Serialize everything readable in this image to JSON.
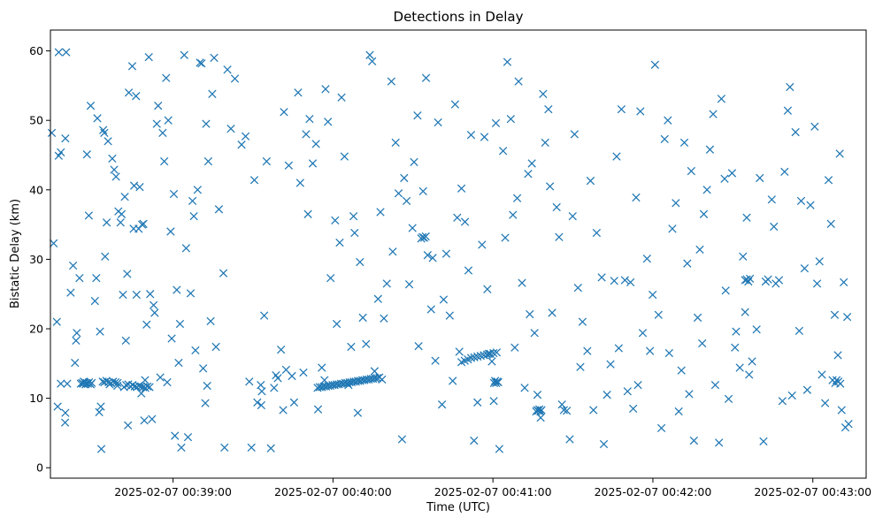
{
  "chart_data": {
    "type": "scatter",
    "title": "Detections in Delay",
    "xlabel": "Time (UTC)",
    "ylabel": "Bistatic Delay (km)",
    "marker": "x",
    "marker_color": "#1f77b4",
    "x_unit": "seconds after 2025-02-07 00:38:00",
    "x_ticks": [
      {
        "value": 60,
        "label": "2025-02-07 00:39:00"
      },
      {
        "value": 120,
        "label": "2025-02-07 00:40:00"
      },
      {
        "value": 180,
        "label": "2025-02-07 00:41:00"
      },
      {
        "value": 240,
        "label": "2025-02-07 00:42:00"
      },
      {
        "value": 300,
        "label": "2025-02-07 00:43:00"
      }
    ],
    "y_ticks": [
      0,
      10,
      20,
      30,
      40,
      50,
      60
    ],
    "xlim": [
      14,
      320
    ],
    "ylim": [
      -1.5,
      63
    ],
    "grid": false,
    "x": [
      14.5,
      15.2,
      16.4,
      16.7,
      17.1,
      17.9,
      19.9,
      19.6,
      20.3,
      17.1,
      17.9,
      19.5,
      19.6,
      21.6,
      23.2,
      22.5,
      23.6,
      23.9,
      24.9,
      26.5,
      27.7,
      28.4,
      29.1,
      30.7,
      31.2,
      31.6,
      32.3,
      32.6,
      32.9,
      33.1,
      33.8,
      34.2,
      34.5,
      35.1,
      35.6,
      36.2,
      37.2,
      37.9,
      38.6,
      39.5,
      39.1,
      40.3,
      40.7,
      41.2,
      41.9,
      42.3,
      42.8,
      43.1,
      43.4,
      44.7,
      45.2,
      45.4,
      46.1,
      46.3,
      47.1,
      47.5,
      48.1,
      48.4,
      48.9,
      49.2,
      49.5,
      50.1,
      50.9,
      51.4,
      52.1,
      52.7,
      53.1,
      53.9,
      54.4,
      55.2,
      56.1,
      56.7,
      57.4,
      57.8,
      58.2,
      59.1,
      59.5,
      60.3,
      60.7,
      61.4,
      62.1,
      62.6,
      63.1,
      64.2,
      64.9,
      65.6,
      66.6,
      67.3,
      67.8,
      68.4,
      69.2,
      70.1,
      70.7,
      71.3,
      72.1,
      72.4,
      72.8,
      73.2,
      74.1,
      74.7,
      75.4,
      76.1,
      77.2,
      78.9,
      79.3,
      80.4,
      81.7,
      83.2,
      85.7,
      87.2,
      88.6,
      89.4,
      90.5,
      91.6,
      92.9,
      93.1,
      93.3,
      94.2,
      95.1,
      96.7,
      97.9,
      98.6,
      99.3,
      100.5,
      101.3,
      101.6,
      102.4,
      103.4,
      104.6,
      105.4,
      106.9,
      107.7,
      108.9,
      109.9,
      110.6,
      111.2,
      112.4,
      113.6,
      114.4,
      115.8,
      116.8,
      117.2,
      118.1,
      119.1,
      120.8,
      121.4,
      122.5,
      123.2,
      124.3,
      125.8,
      126.8,
      127.7,
      128.1,
      129.3,
      130.1,
      131.2,
      132.4,
      133.8,
      134.7,
      135.6,
      136.9,
      137.8,
      138.4,
      139.1,
      140.2,
      141.9,
      142.4,
      143.5,
      144.6,
      145.9,
      146.7,
      147.6,
      148.6,
      149.8,
      150.4,
      151.7,
      152.1,
      153.8,
      154.9,
      155.5,
      156.8,
      157.4,
      158.4,
      159.4,
      160.9,
      161.5,
      162.5,
      163.8,
      164.9,
      165.8,
      166.6,
      167.4,
      168.2,
      169.5,
      170.8,
      171.8,
      172.9,
      174.2,
      175.9,
      176.8,
      177.9,
      178.4,
      179.6,
      180.3,
      181.1,
      182.4,
      183.8,
      184.6,
      185.4,
      186.7,
      187.5,
      188.2,
      189.1,
      189.6,
      190.9,
      191.9,
      193.2,
      193.8,
      194.6,
      195.6,
      196.7,
      197.9,
      198.8,
      199.6,
      200.8,
      201.4,
      202.2,
      203.9,
      204.8,
      205.9,
      206.6,
      207.7,
      208.8,
      209.9,
      210.6,
      211.9,
      212.8,
      213.6,
      215.4,
      216.6,
      217.7,
      218.9,
      220.8,
      221.6,
      222.8,
      224.1,
      225.5,
      226.4,
      227.2,
      228.2,
      229.5,
      230.5,
      231.6,
      232.6,
      233.7,
      234.4,
      235.3,
      236.2,
      237.8,
      238.9,
      239.9,
      240.8,
      242.1,
      243.2,
      244.4,
      245.6,
      246.1,
      247.3,
      248.6,
      249.7,
      250.7,
      251.8,
      252.9,
      253.6,
      254.4,
      255.4,
      256.8,
      257.6,
      258.5,
      259.1,
      260.3,
      261.4,
      262.6,
      263.4,
      264.8,
      265.7,
      266.9,
      267.3,
      268.4,
      269.7,
      270.8,
      271.2,
      272.6,
      273.8,
      274.6,
      275.2,
      276.1,
      277.2,
      278.9,
      280.1,
      281.5,
      282.3,
      283.2,
      284.6,
      285.4,
      286.1,
      287.3,
      288.6,
      289.4,
      290.6,
      291.4,
      292.2,
      293.5,
      294.9,
      295.6,
      296.9,
      297.9,
      299.1,
      300.7,
      301.6,
      302.5,
      303.4,
      304.6,
      305.9,
      306.8,
      307.4,
      308.2,
      309.4,
      310.1,
      310.8,
      311.6,
      312.2,
      312.9,
      313.4,
      25.4,
      25.9,
      26.3,
      26.8,
      27.2,
      27.6,
      28.1,
      28.5,
      29.1,
      29.5,
      33.6,
      34.2,
      35.0,
      35.8,
      36.7,
      37.5,
      38.4,
      39.2,
      41.6,
      42.4,
      43.2,
      44.0,
      44.8,
      45.6,
      46.4,
      47.2,
      48.0,
      48.8,
      49.6,
      50.4,
      51.2,
      114.2,
      115.0,
      115.8,
      116.6,
      117.4,
      118.2,
      119.0,
      119.8,
      120.6,
      121.4,
      122.2,
      123.0,
      123.8,
      124.6,
      125.4,
      126.2,
      127.0,
      127.8,
      128.6,
      129.4,
      130.2,
      131.0,
      131.8,
      132.6,
      133.4,
      134.2,
      135.0,
      135.8,
      136.6,
      137.4,
      168.2,
      169.4,
      170.6,
      171.8,
      173.0,
      174.2,
      175.4,
      176.6,
      177.8,
      179.0,
      180.2,
      181.4,
      180.4,
      180.8,
      181.2,
      181.6,
      182.0,
      196.2,
      196.6,
      197.0,
      197.4,
      197.8,
      198.2,
      153.1,
      153.6,
      154.2,
      154.8,
      274.6,
      275.2,
      275.8,
      276.4,
      308.4,
      308.9,
      309.6,
      310.3
    ],
    "y": [
      48.2,
      32.3,
      21.0,
      8.8,
      44.9,
      45.4,
      59.8,
      47.4,
      12.1,
      59.8,
      12.1,
      6.5,
      7.9,
      25.2,
      15.1,
      29.1,
      18.3,
      19.4,
      27.3,
      12.4,
      45.1,
      36.3,
      52.1,
      24.0,
      27.3,
      50.3,
      8.0,
      19.6,
      8.8,
      2.7,
      48.6,
      48.2,
      30.4,
      35.3,
      47.0,
      12.0,
      44.5,
      42.9,
      41.9,
      36.9,
      11.8,
      35.3,
      36.5,
      24.9,
      39.0,
      18.3,
      27.9,
      6.1,
      54.0,
      57.8,
      34.4,
      40.6,
      53.5,
      24.9,
      34.4,
      40.4,
      10.7,
      35.0,
      35.1,
      6.8,
      12.6,
      20.6,
      59.1,
      25.0,
      7.0,
      23.4,
      22.3,
      49.5,
      52.1,
      13.0,
      48.2,
      44.1,
      56.1,
      12.3,
      50.0,
      34.0,
      18.6,
      39.4,
      4.6,
      25.6,
      15.1,
      20.7,
      2.9,
      59.4,
      31.6,
      4.4,
      25.1,
      38.4,
      36.2,
      16.9,
      40.0,
      58.3,
      58.2,
      14.3,
      9.3,
      49.5,
      11.8,
      44.1,
      21.1,
      53.8,
      59.0,
      17.4,
      37.2,
      28.0,
      2.9,
      57.3,
      48.8,
      56.0,
      46.5,
      47.7,
      12.4,
      2.9,
      41.4,
      9.4,
      11.9,
      9.0,
      11.0,
      21.9,
      44.1,
      2.8,
      11.5,
      13.3,
      12.9,
      17.0,
      8.3,
      51.2,
      14.1,
      43.5,
      13.2,
      9.4,
      54.0,
      41.0,
      13.7,
      48.0,
      36.5,
      50.2,
      43.8,
      46.6,
      8.4,
      14.4,
      12.6,
      54.5,
      49.8,
      27.3,
      35.6,
      20.7,
      32.4,
      53.3,
      44.8,
      11.9,
      17.4,
      36.2,
      33.8,
      7.9,
      29.6,
      21.6,
      17.8,
      59.4,
      58.5,
      13.9,
      24.3,
      36.8,
      12.7,
      21.5,
      26.5,
      55.6,
      31.1,
      46.8,
      39.5,
      4.1,
      41.7,
      38.4,
      26.4,
      34.5,
      44.0,
      50.7,
      17.5,
      39.8,
      56.1,
      30.6,
      22.8,
      30.2,
      15.4,
      49.7,
      9.1,
      24.2,
      30.8,
      21.9,
      12.5,
      52.3,
      36.0,
      16.7,
      40.2,
      35.4,
      28.4,
      47.9,
      3.9,
      9.4,
      32.1,
      47.6,
      25.7,
      16.4,
      15.3,
      9.6,
      49.6,
      2.7,
      45.6,
      33.1,
      58.4,
      50.2,
      36.4,
      17.3,
      38.8,
      55.6,
      26.6,
      11.5,
      42.3,
      22.1,
      43.8,
      19.4,
      10.5,
      7.2,
      53.8,
      46.8,
      51.6,
      40.5,
      22.3,
      37.5,
      33.2,
      9.1,
      8.3,
      8.2,
      4.1,
      36.2,
      48.0,
      25.9,
      14.5,
      21.0,
      16.8,
      41.3,
      8.3,
      33.8,
      27.4,
      3.4,
      10.5,
      14.9,
      26.9,
      44.8,
      17.2,
      51.6,
      27.0,
      11.0,
      26.7,
      8.5,
      38.9,
      11.9,
      51.3,
      19.4,
      30.1,
      16.8,
      24.9,
      58.0,
      22.0,
      5.7,
      47.3,
      50.0,
      16.5,
      34.4,
      38.1,
      8.1,
      14.0,
      46.8,
      29.4,
      10.6,
      42.7,
      3.9,
      21.6,
      31.4,
      17.9,
      36.5,
      40.0,
      45.8,
      50.9,
      11.9,
      3.6,
      53.1,
      41.6,
      25.5,
      9.9,
      42.4,
      17.3,
      19.6,
      14.4,
      30.4,
      22.4,
      36.0,
      13.4,
      15.3,
      19.9,
      41.7,
      3.8,
      26.8,
      27.1,
      38.6,
      34.7,
      26.5,
      27.0,
      9.6,
      42.6,
      51.4,
      54.8,
      10.4,
      48.3,
      19.7,
      38.4,
      28.7,
      11.2,
      37.8,
      49.1,
      26.5,
      29.7,
      13.4,
      9.3,
      41.4,
      35.1,
      12.6,
      22.0,
      16.2,
      45.2,
      8.3,
      26.7,
      5.8,
      21.7,
      6.3,
      12.1,
      12.2,
      12.1,
      12.3,
      12.0,
      12.2,
      12.1,
      12.3,
      12.0,
      12.2,
      12.4,
      12.3,
      12.5,
      12.3,
      12.2,
      12.4,
      12.3,
      12.2,
      11.6,
      11.9,
      12.0,
      11.7,
      11.9,
      11.7,
      11.6,
      11.8,
      11.7,
      11.6,
      11.5,
      11.7,
      11.6,
      11.5,
      11.6,
      11.6,
      11.7,
      11.7,
      11.8,
      11.8,
      11.9,
      11.9,
      12.0,
      12.0,
      12.1,
      12.1,
      12.2,
      12.2,
      12.3,
      12.3,
      12.4,
      12.4,
      12.5,
      12.5,
      12.6,
      12.6,
      12.7,
      12.7,
      12.8,
      12.8,
      12.9,
      12.9,
      13.0,
      15.2,
      15.4,
      15.6,
      15.8,
      15.9,
      16.0,
      16.1,
      16.2,
      16.3,
      16.4,
      16.5,
      16.6,
      12.2,
      12.5,
      12.2,
      12.4,
      12.3,
      8.1,
      8.3,
      8.2,
      8.4,
      8.1,
      8.3,
      33.0,
      33.2,
      33.1,
      33.3,
      27.0,
      27.1,
      26.8,
      27.2,
      12.2,
      12.6,
      12.4,
      12.1
    ]
  }
}
